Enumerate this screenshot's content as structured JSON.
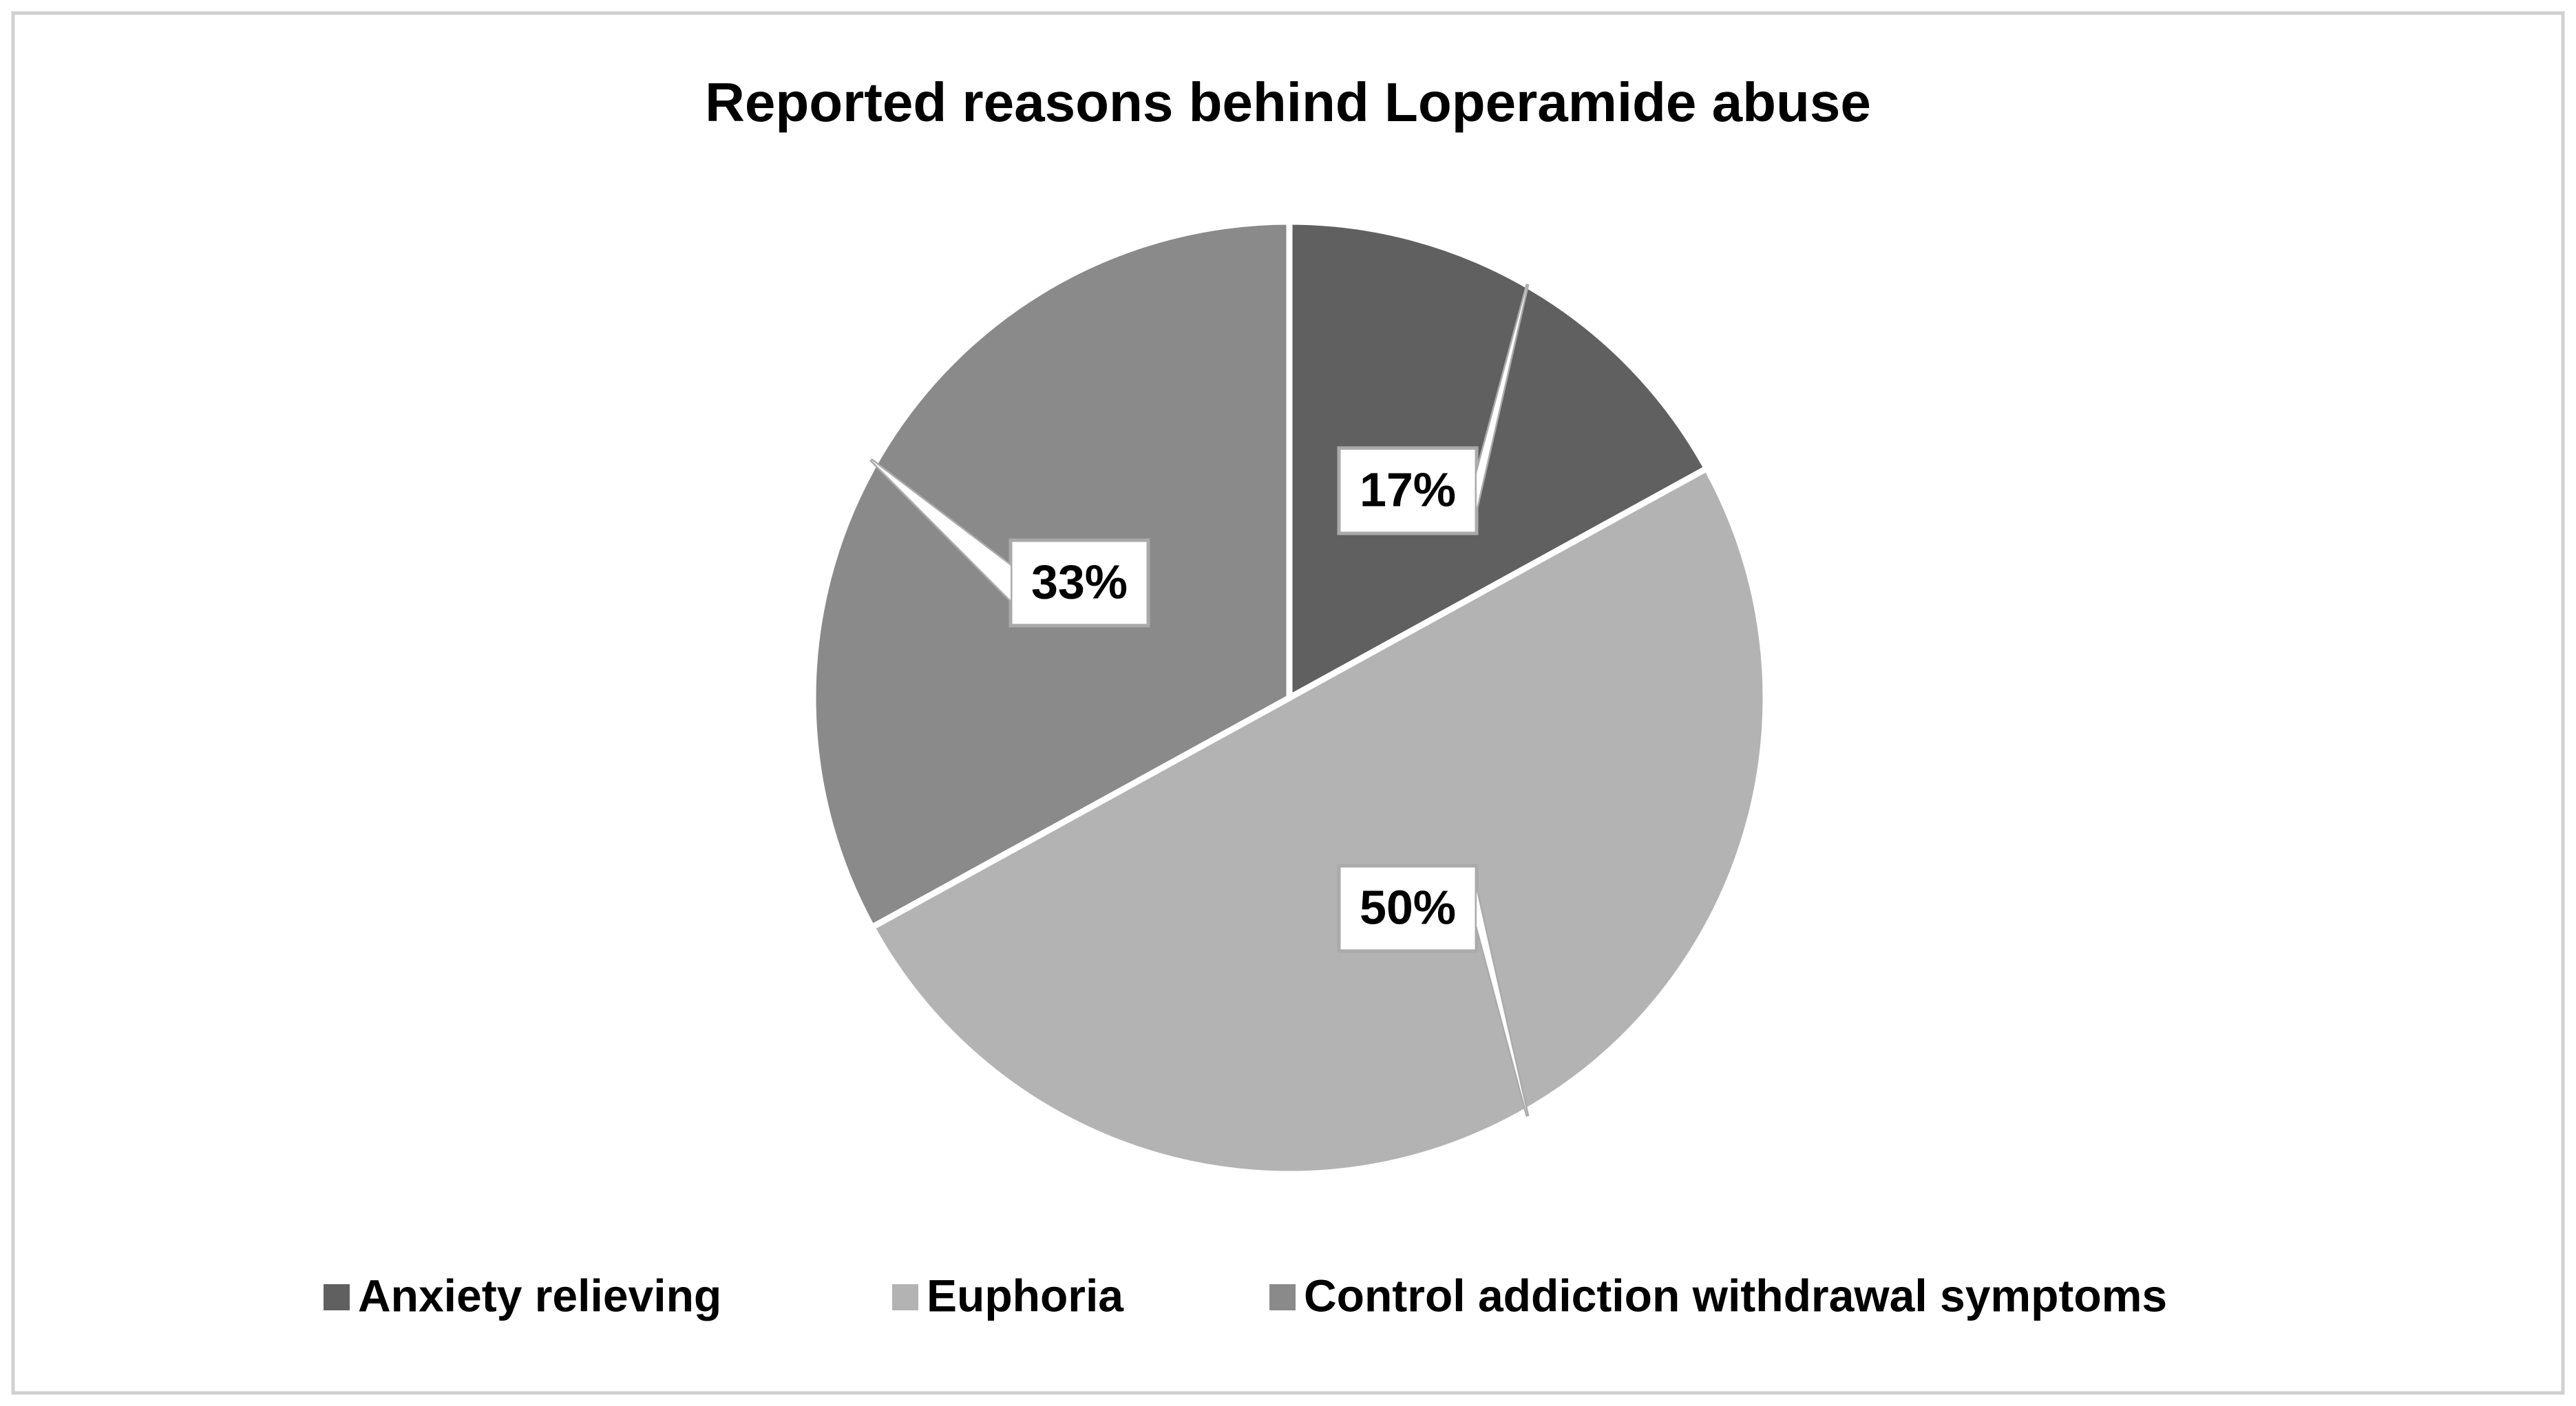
{
  "chart_data": {
    "type": "pie",
    "title": "Reported reasons behind Loperamide abuse",
    "categories": [
      "Anxiety relieving",
      "Euphoria",
      "Control addiction withdrawal symptoms"
    ],
    "values": [
      17,
      50,
      33
    ],
    "value_labels": [
      "17%",
      "50%",
      "33%"
    ],
    "colors": [
      "#606060",
      "#b3b3b3",
      "#8a8a8a"
    ],
    "legend": "bottom"
  }
}
